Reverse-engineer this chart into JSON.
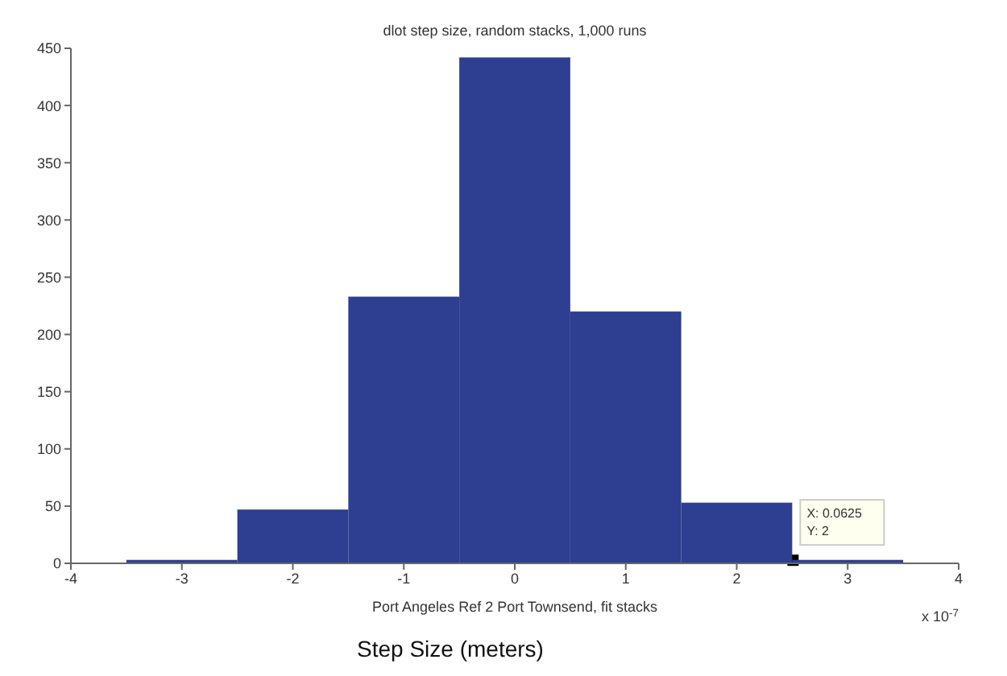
{
  "chart_data": {
    "type": "histogram",
    "title": "dlot step size, random stacks, 1,000 runs",
    "xlabel": "Step Size (meters)",
    "bins": [
      -3.5,
      -2.5,
      -1.5,
      -0.5,
      0.5,
      1.5,
      2.5,
      3.5
    ],
    "values": [
      3,
      47,
      233,
      442,
      220,
      53,
      3
    ],
    "color": "#2e3e90",
    "xlim": [
      -4,
      4
    ],
    "xticks": [
      -4,
      -3,
      -2,
      -1,
      0,
      1,
      2,
      3,
      4
    ],
    "ylim": [
      0,
      450
    ],
    "yticks": [
      0,
      50,
      100,
      150,
      200,
      250,
      300,
      350,
      400,
      450
    ],
    "grid": false,
    "annotations": [
      "Port Angeles Ref 2 Port Townsend, fit stacks",
      "X: 0.0625\nY: 2",
      "x 10$^{-7}$"
    ]
  }
}
